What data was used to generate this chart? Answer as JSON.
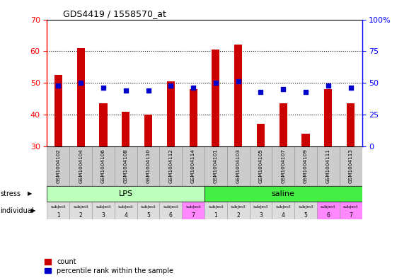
{
  "title": "GDS4419 / 1558570_at",
  "samples": [
    "GSM1004102",
    "GSM1004104",
    "GSM1004106",
    "GSM1004108",
    "GSM1004110",
    "GSM1004112",
    "GSM1004114",
    "GSM1004101",
    "GSM1004103",
    "GSM1004105",
    "GSM1004107",
    "GSM1004109",
    "GSM1004111",
    "GSM1004113"
  ],
  "counts": [
    52.5,
    61.0,
    43.5,
    41.0,
    40.0,
    50.5,
    48.0,
    60.5,
    62.0,
    37.0,
    43.5,
    34.0,
    48.0,
    43.5
  ],
  "percentiles": [
    48,
    50,
    46,
    44,
    44,
    48,
    46,
    50,
    51,
    43,
    45,
    43,
    48,
    46
  ],
  "ylim_left": [
    30,
    70
  ],
  "ylim_right": [
    0,
    100
  ],
  "yticks_left": [
    30,
    40,
    50,
    60,
    70
  ],
  "yticks_right": [
    0,
    25,
    50,
    75,
    100
  ],
  "bar_color": "#cc0000",
  "dot_color": "#0000cc",
  "stress_labels": [
    "LPS",
    "saline"
  ],
  "stress_colors": [
    "#bbffbb",
    "#44ee44"
  ],
  "individual_labels_top": [
    "subject",
    "subject",
    "subject",
    "subject",
    "subject",
    "subject",
    "subject",
    "subject",
    "subject",
    "subject",
    "subject",
    "subject",
    "subject",
    "subject"
  ],
  "individual_numbers": [
    "1",
    "2",
    "3",
    "4",
    "5",
    "6",
    "7",
    "1",
    "2",
    "3",
    "4",
    "5",
    "6",
    "7"
  ],
  "ind_colors": [
    "#dddddd",
    "#dddddd",
    "#dddddd",
    "#dddddd",
    "#dddddd",
    "#dddddd",
    "#ff88ff",
    "#dddddd",
    "#dddddd",
    "#dddddd",
    "#dddddd",
    "#dddddd",
    "#ff88ff",
    "#ff88ff"
  ],
  "sample_bg": "#cccccc",
  "bar_width": 0.35,
  "dot_size": 18,
  "background_color": "#ffffff"
}
